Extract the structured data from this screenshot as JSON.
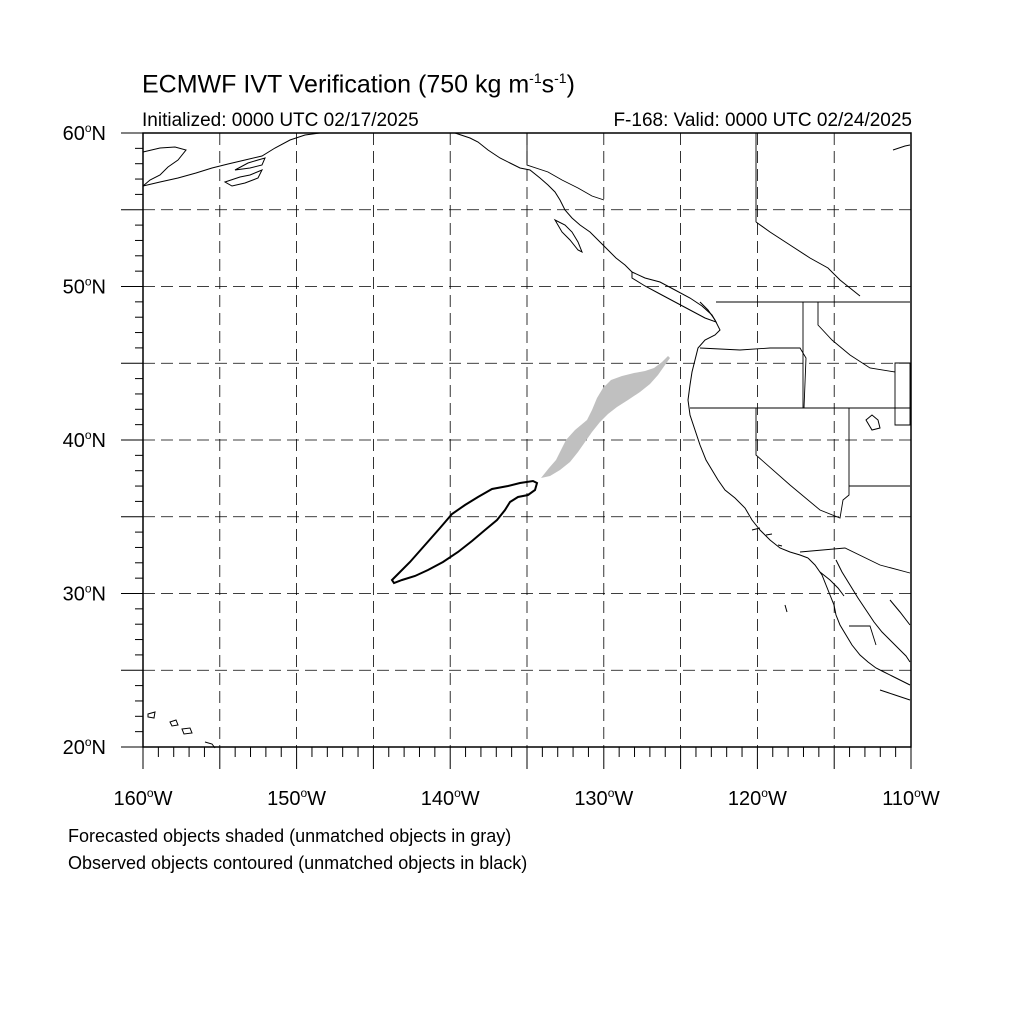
{
  "header": {
    "title_main": "ECMWF IVT Verification (750 kg m",
    "title_sup1": "-1",
    "title_mid": "s",
    "title_sup2": "-1",
    "title_end": ")",
    "initialized": "Initialized: 0000 UTC 02/17/2025",
    "valid": "F-168: Valid: 0000 UTC 02/24/2025"
  },
  "axes": {
    "lat_ticks": [
      {
        "value": 60,
        "label": "60",
        "suffix": "N"
      },
      {
        "value": 50,
        "label": "50",
        "suffix": "N"
      },
      {
        "value": 40,
        "label": "40",
        "suffix": "N"
      },
      {
        "value": 30,
        "label": "30",
        "suffix": "N"
      },
      {
        "value": 20,
        "label": "20",
        "suffix": "N"
      }
    ],
    "lon_ticks": [
      {
        "value": -160,
        "label": "160",
        "suffix": "W"
      },
      {
        "value": -150,
        "label": "150",
        "suffix": "W"
      },
      {
        "value": -140,
        "label": "140",
        "suffix": "W"
      },
      {
        "value": -130,
        "label": "130",
        "suffix": "W"
      },
      {
        "value": -120,
        "label": "120",
        "suffix": "W"
      },
      {
        "value": -110,
        "label": "110",
        "suffix": "W"
      }
    ],
    "lat_range": [
      20,
      60
    ],
    "lon_range": [
      -160,
      -110
    ],
    "grid_spacing_deg": 5
  },
  "objects": {
    "forecast_unmatched_color": "#c0c0c0",
    "observed_unmatched_color": "#000000"
  },
  "notes": {
    "line1": "Forecasted objects shaded (unmatched objects in gray)",
    "line2": "Observed objects contoured (unmatched objects in black)"
  }
}
